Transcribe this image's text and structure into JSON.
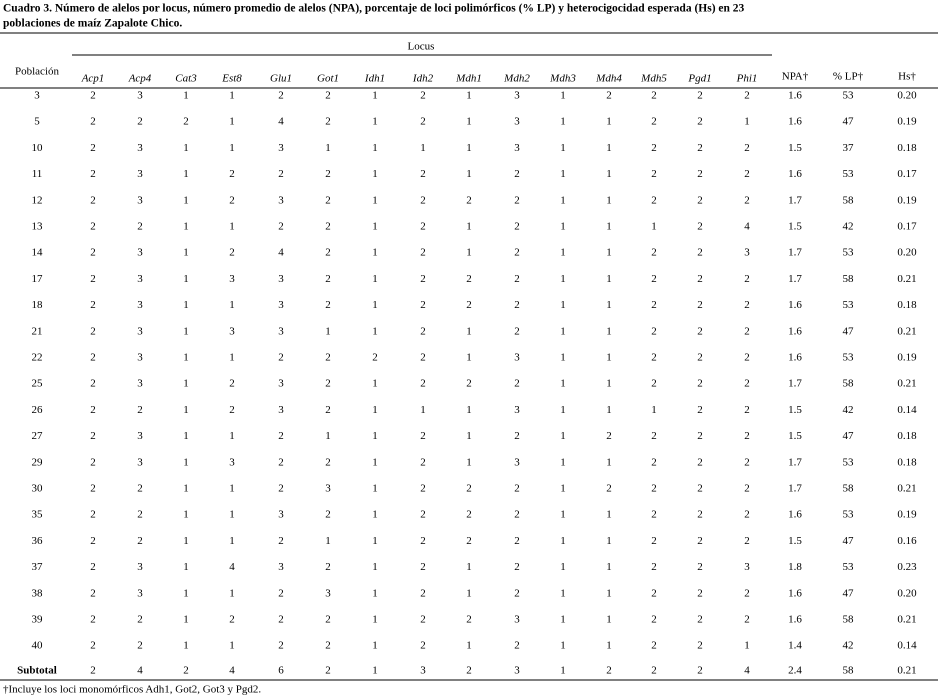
{
  "title_lines": [
    "Cuadro 3. Número de alelos por locus, número promedio de alelos (NPA), porcentaje de loci polimórficos (% LP) y heterocigocidad esperada (Hs) en 23",
    "poblaciones de maíz Zapalote Chico."
  ],
  "table": {
    "group_header": "Locus",
    "row_header": "Población",
    "loci": [
      "Acp1",
      "Acp4",
      "Cat3",
      "Est8",
      "Glu1",
      "Got1",
      "Idh1",
      "Idh2",
      "Mdh1",
      "Mdh2",
      "Mdh3",
      "Mdh4",
      "Mdh5",
      "Pgd1",
      "Phi1"
    ],
    "stats": [
      "NPA†",
      "% LP†",
      "Hs†"
    ],
    "rows": [
      [
        "3",
        "2",
        "3",
        "1",
        "1",
        "2",
        "2",
        "1",
        "2",
        "1",
        "3",
        "1",
        "2",
        "2",
        "2",
        "2",
        "1.6",
        "53",
        "0.20"
      ],
      [
        "5",
        "2",
        "2",
        "2",
        "1",
        "4",
        "2",
        "1",
        "2",
        "1",
        "3",
        "1",
        "1",
        "2",
        "2",
        "1",
        "1.6",
        "47",
        "0.19"
      ],
      [
        "10",
        "2",
        "3",
        "1",
        "1",
        "3",
        "1",
        "1",
        "1",
        "1",
        "3",
        "1",
        "1",
        "2",
        "2",
        "2",
        "1.5",
        "37",
        "0.18"
      ],
      [
        "11",
        "2",
        "3",
        "1",
        "2",
        "2",
        "2",
        "1",
        "2",
        "1",
        "2",
        "1",
        "1",
        "2",
        "2",
        "2",
        "1.6",
        "53",
        "0.17"
      ],
      [
        "12",
        "2",
        "3",
        "1",
        "2",
        "3",
        "2",
        "1",
        "2",
        "2",
        "2",
        "1",
        "1",
        "2",
        "2",
        "2",
        "1.7",
        "58",
        "0.19"
      ],
      [
        "13",
        "2",
        "2",
        "1",
        "1",
        "2",
        "2",
        "1",
        "2",
        "1",
        "2",
        "1",
        "1",
        "1",
        "2",
        "4",
        "1.5",
        "42",
        "0.17"
      ],
      [
        "14",
        "2",
        "3",
        "1",
        "2",
        "4",
        "2",
        "1",
        "2",
        "1",
        "2",
        "1",
        "1",
        "2",
        "2",
        "3",
        "1.7",
        "53",
        "0.20"
      ],
      [
        "17",
        "2",
        "3",
        "1",
        "3",
        "3",
        "2",
        "1",
        "2",
        "2",
        "2",
        "1",
        "1",
        "2",
        "2",
        "2",
        "1.7",
        "58",
        "0.21"
      ],
      [
        "18",
        "2",
        "3",
        "1",
        "1",
        "3",
        "2",
        "1",
        "2",
        "2",
        "2",
        "1",
        "1",
        "2",
        "2",
        "2",
        "1.6",
        "53",
        "0.18"
      ],
      [
        "21",
        "2",
        "3",
        "1",
        "3",
        "3",
        "1",
        "1",
        "2",
        "1",
        "2",
        "1",
        "1",
        "2",
        "2",
        "2",
        "1.6",
        "47",
        "0.21"
      ],
      [
        "22",
        "2",
        "3",
        "1",
        "1",
        "2",
        "2",
        "2",
        "2",
        "1",
        "3",
        "1",
        "1",
        "2",
        "2",
        "2",
        "1.6",
        "53",
        "0.19"
      ],
      [
        "25",
        "2",
        "3",
        "1",
        "2",
        "3",
        "2",
        "1",
        "2",
        "2",
        "2",
        "1",
        "1",
        "2",
        "2",
        "2",
        "1.7",
        "58",
        "0.21"
      ],
      [
        "26",
        "2",
        "2",
        "1",
        "2",
        "3",
        "2",
        "1",
        "1",
        "1",
        "3",
        "1",
        "1",
        "1",
        "2",
        "2",
        "1.5",
        "42",
        "0.14"
      ],
      [
        "27",
        "2",
        "3",
        "1",
        "1",
        "2",
        "1",
        "1",
        "2",
        "1",
        "2",
        "1",
        "2",
        "2",
        "2",
        "2",
        "1.5",
        "47",
        "0.18"
      ],
      [
        "29",
        "2",
        "3",
        "1",
        "3",
        "2",
        "2",
        "1",
        "2",
        "1",
        "3",
        "1",
        "1",
        "2",
        "2",
        "2",
        "1.7",
        "53",
        "0.18"
      ],
      [
        "30",
        "2",
        "2",
        "1",
        "1",
        "2",
        "3",
        "1",
        "2",
        "2",
        "2",
        "1",
        "2",
        "2",
        "2",
        "2",
        "1.7",
        "58",
        "0.21"
      ],
      [
        "35",
        "2",
        "2",
        "1",
        "1",
        "3",
        "2",
        "1",
        "2",
        "2",
        "2",
        "1",
        "1",
        "2",
        "2",
        "2",
        "1.6",
        "53",
        "0.19"
      ],
      [
        "36",
        "2",
        "2",
        "1",
        "1",
        "2",
        "1",
        "1",
        "2",
        "2",
        "2",
        "1",
        "1",
        "2",
        "2",
        "2",
        "1.5",
        "47",
        "0.16"
      ],
      [
        "37",
        "2",
        "3",
        "1",
        "4",
        "3",
        "2",
        "1",
        "2",
        "1",
        "2",
        "1",
        "1",
        "2",
        "2",
        "3",
        "1.8",
        "53",
        "0.23"
      ],
      [
        "38",
        "2",
        "3",
        "1",
        "1",
        "2",
        "3",
        "1",
        "2",
        "1",
        "2",
        "1",
        "1",
        "2",
        "2",
        "2",
        "1.6",
        "47",
        "0.20"
      ],
      [
        "39",
        "2",
        "2",
        "1",
        "2",
        "2",
        "2",
        "1",
        "2",
        "2",
        "3",
        "1",
        "1",
        "2",
        "2",
        "2",
        "1.6",
        "58",
        "0.21"
      ],
      [
        "40",
        "2",
        "2",
        "1",
        "1",
        "2",
        "2",
        "1",
        "2",
        "1",
        "2",
        "1",
        "1",
        "2",
        "2",
        "1",
        "1.4",
        "42",
        "0.14"
      ],
      [
        "Subtotal",
        "2",
        "4",
        "2",
        "4",
        "6",
        "2",
        "1",
        "3",
        "2",
        "3",
        "1",
        "2",
        "2",
        "2",
        "4",
        "2.4",
        "58",
        "0.21"
      ]
    ]
  },
  "footnote": "†Incluye los loci monomórficos Adh1, Got2, Got3 y Pgd2."
}
